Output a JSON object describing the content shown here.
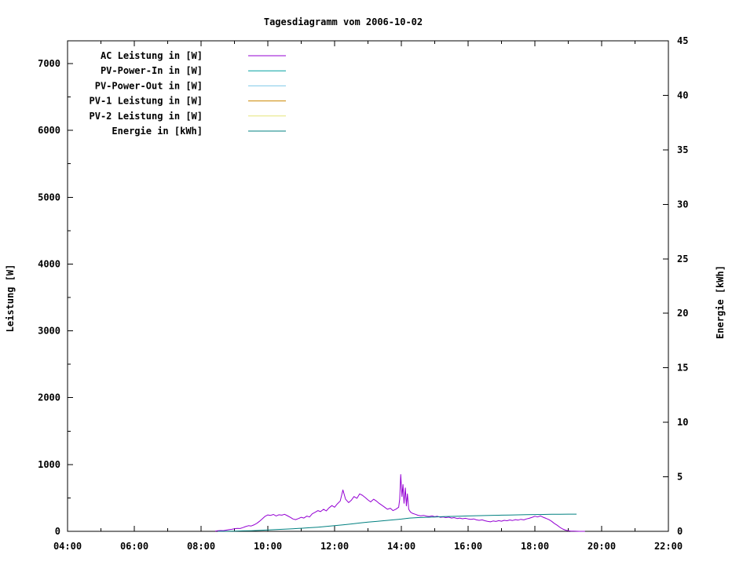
{
  "chart_data": {
    "type": "line",
    "title": "Tagesdiagramm vom 2006-10-02",
    "ylabel": "Leistung [W]",
    "y2label": "Energie [kWh]",
    "grid": false,
    "legend_position": "top-left",
    "x_axis": {
      "min": 4,
      "max": 22,
      "major_step": 2,
      "minor_step": 1,
      "tick_labels": [
        "04:00",
        "06:00",
        "08:00",
        "10:00",
        "12:00",
        "14:00",
        "16:00",
        "18:00",
        "20:00",
        "22:00"
      ]
    },
    "y_left": {
      "min": 0,
      "max": 7340,
      "tick_max": 7000,
      "major_step": 1000,
      "minor_step": 500,
      "tick_labels": [
        "0",
        "1000",
        "2000",
        "3000",
        "4000",
        "5000",
        "6000",
        "7000"
      ]
    },
    "y_right": {
      "min": 0,
      "max": 45,
      "major_step": 5,
      "tick_labels": [
        "0",
        "5",
        "10",
        "15",
        "20",
        "25",
        "30",
        "35",
        "40",
        "45"
      ]
    },
    "series": [
      {
        "name": "AC Leistung in [W]",
        "color": "#9400d3",
        "axis": "left",
        "points": [
          [
            8.42,
            3
          ],
          [
            8.5,
            8
          ],
          [
            8.58,
            12
          ],
          [
            8.67,
            10
          ],
          [
            8.75,
            18
          ],
          [
            8.83,
            25
          ],
          [
            8.92,
            30
          ],
          [
            9.0,
            38
          ],
          [
            9.08,
            45
          ],
          [
            9.17,
            42
          ],
          [
            9.25,
            55
          ],
          [
            9.33,
            70
          ],
          [
            9.42,
            85
          ],
          [
            9.5,
            80
          ],
          [
            9.58,
            95
          ],
          [
            9.67,
            120
          ],
          [
            9.75,
            150
          ],
          [
            9.83,
            185
          ],
          [
            9.92,
            225
          ],
          [
            10.0,
            245
          ],
          [
            10.08,
            238
          ],
          [
            10.17,
            252
          ],
          [
            10.25,
            230
          ],
          [
            10.33,
            248
          ],
          [
            10.42,
            242
          ],
          [
            10.5,
            255
          ],
          [
            10.58,
            235
          ],
          [
            10.67,
            210
          ],
          [
            10.75,
            185
          ],
          [
            10.83,
            175
          ],
          [
            10.92,
            192
          ],
          [
            11.0,
            210
          ],
          [
            11.08,
            198
          ],
          [
            11.17,
            228
          ],
          [
            11.25,
            215
          ],
          [
            11.33,
            262
          ],
          [
            11.42,
            285
          ],
          [
            11.5,
            310
          ],
          [
            11.58,
            295
          ],
          [
            11.67,
            330
          ],
          [
            11.75,
            305
          ],
          [
            11.83,
            350
          ],
          [
            11.92,
            385
          ],
          [
            12.0,
            360
          ],
          [
            12.08,
            410
          ],
          [
            12.17,
            455
          ],
          [
            12.25,
            620
          ],
          [
            12.33,
            480
          ],
          [
            12.42,
            430
          ],
          [
            12.5,
            465
          ],
          [
            12.58,
            520
          ],
          [
            12.67,
            495
          ],
          [
            12.75,
            560
          ],
          [
            12.83,
            540
          ],
          [
            12.92,
            505
          ],
          [
            13.0,
            470
          ],
          [
            13.08,
            440
          ],
          [
            13.17,
            480
          ],
          [
            13.25,
            455
          ],
          [
            13.33,
            420
          ],
          [
            13.42,
            390
          ],
          [
            13.5,
            360
          ],
          [
            13.58,
            330
          ],
          [
            13.67,
            345
          ],
          [
            13.75,
            310
          ],
          [
            13.83,
            330
          ],
          [
            13.92,
            360
          ],
          [
            13.95,
            480
          ],
          [
            13.98,
            850
          ],
          [
            14.02,
            520
          ],
          [
            14.05,
            700
          ],
          [
            14.08,
            420
          ],
          [
            14.12,
            650
          ],
          [
            14.15,
            380
          ],
          [
            14.18,
            560
          ],
          [
            14.22,
            330
          ],
          [
            14.27,
            290
          ],
          [
            14.33,
            270
          ],
          [
            14.42,
            255
          ],
          [
            14.5,
            240
          ],
          [
            14.58,
            232
          ],
          [
            14.67,
            238
          ],
          [
            14.75,
            228
          ],
          [
            14.83,
            222
          ],
          [
            14.92,
            230
          ],
          [
            15.0,
            218
          ],
          [
            15.08,
            225
          ],
          [
            15.17,
            210
          ],
          [
            15.25,
            215
          ],
          [
            15.33,
            205
          ],
          [
            15.42,
            212
          ],
          [
            15.5,
            198
          ],
          [
            15.58,
            205
          ],
          [
            15.67,
            192
          ],
          [
            15.75,
            198
          ],
          [
            15.83,
            188
          ],
          [
            15.92,
            195
          ],
          [
            16.0,
            185
          ],
          [
            16.08,
            178
          ],
          [
            16.17,
            185
          ],
          [
            16.25,
            172
          ],
          [
            16.33,
            165
          ],
          [
            16.42,
            172
          ],
          [
            16.5,
            158
          ],
          [
            16.58,
            150
          ],
          [
            16.67,
            142
          ],
          [
            16.75,
            155
          ],
          [
            16.83,
            148
          ],
          [
            16.92,
            160
          ],
          [
            17.0,
            152
          ],
          [
            17.08,
            165
          ],
          [
            17.17,
            158
          ],
          [
            17.25,
            170
          ],
          [
            17.33,
            162
          ],
          [
            17.42,
            175
          ],
          [
            17.5,
            168
          ],
          [
            17.58,
            180
          ],
          [
            17.67,
            172
          ],
          [
            17.75,
            185
          ],
          [
            17.83,
            195
          ],
          [
            17.92,
            210
          ],
          [
            18.0,
            225
          ],
          [
            18.08,
            215
          ],
          [
            18.17,
            230
          ],
          [
            18.25,
            210
          ],
          [
            18.33,
            195
          ],
          [
            18.42,
            175
          ],
          [
            18.5,
            150
          ],
          [
            18.58,
            120
          ],
          [
            18.67,
            90
          ],
          [
            18.75,
            60
          ],
          [
            18.83,
            35
          ],
          [
            18.92,
            18
          ],
          [
            19.0,
            8
          ],
          [
            19.08,
            4
          ],
          [
            19.17,
            2
          ],
          [
            19.25,
            1
          ],
          [
            19.33,
            0
          ],
          [
            19.42,
            0
          ],
          [
            19.5,
            0
          ]
        ]
      },
      {
        "name": "PV-Power-In in [W]",
        "color": "#00a0a0",
        "axis": "left",
        "points": []
      },
      {
        "name": "PV-Power-Out in [W]",
        "color": "#7fc9e8",
        "axis": "left",
        "points": []
      },
      {
        "name": "PV-1 Leistung in [W]",
        "color": "#cc8800",
        "axis": "left",
        "points": []
      },
      {
        "name": "PV-2 Leistung in [W]",
        "color": "#e6e678",
        "axis": "left",
        "points": []
      },
      {
        "name": "Energie in [kWh]",
        "color": "#008080",
        "axis": "right",
        "points": [
          [
            8.5,
            0
          ],
          [
            8.75,
            0.01
          ],
          [
            9.0,
            0.02
          ],
          [
            9.25,
            0.04
          ],
          [
            9.5,
            0.06
          ],
          [
            9.75,
            0.09
          ],
          [
            10.0,
            0.12
          ],
          [
            10.25,
            0.16
          ],
          [
            10.5,
            0.2
          ],
          [
            10.75,
            0.24
          ],
          [
            11.0,
            0.28
          ],
          [
            11.25,
            0.33
          ],
          [
            11.5,
            0.38
          ],
          [
            11.75,
            0.45
          ],
          [
            12.0,
            0.52
          ],
          [
            12.25,
            0.6
          ],
          [
            12.5,
            0.68
          ],
          [
            12.75,
            0.76
          ],
          [
            13.0,
            0.84
          ],
          [
            13.25,
            0.91
          ],
          [
            13.5,
            0.98
          ],
          [
            13.75,
            1.05
          ],
          [
            14.0,
            1.12
          ],
          [
            14.25,
            1.22
          ],
          [
            14.5,
            1.26
          ],
          [
            14.75,
            1.29
          ],
          [
            15.0,
            1.32
          ],
          [
            15.25,
            1.35
          ],
          [
            15.5,
            1.37
          ],
          [
            15.75,
            1.39
          ],
          [
            16.0,
            1.41
          ],
          [
            16.25,
            1.43
          ],
          [
            16.5,
            1.45
          ],
          [
            16.75,
            1.47
          ],
          [
            17.0,
            1.48
          ],
          [
            17.25,
            1.5
          ],
          [
            17.5,
            1.51
          ],
          [
            17.75,
            1.53
          ],
          [
            18.0,
            1.54
          ],
          [
            18.25,
            1.55
          ],
          [
            18.5,
            1.56
          ],
          [
            18.75,
            1.57
          ],
          [
            19.0,
            1.58
          ],
          [
            19.25,
            1.58
          ]
        ]
      }
    ]
  }
}
